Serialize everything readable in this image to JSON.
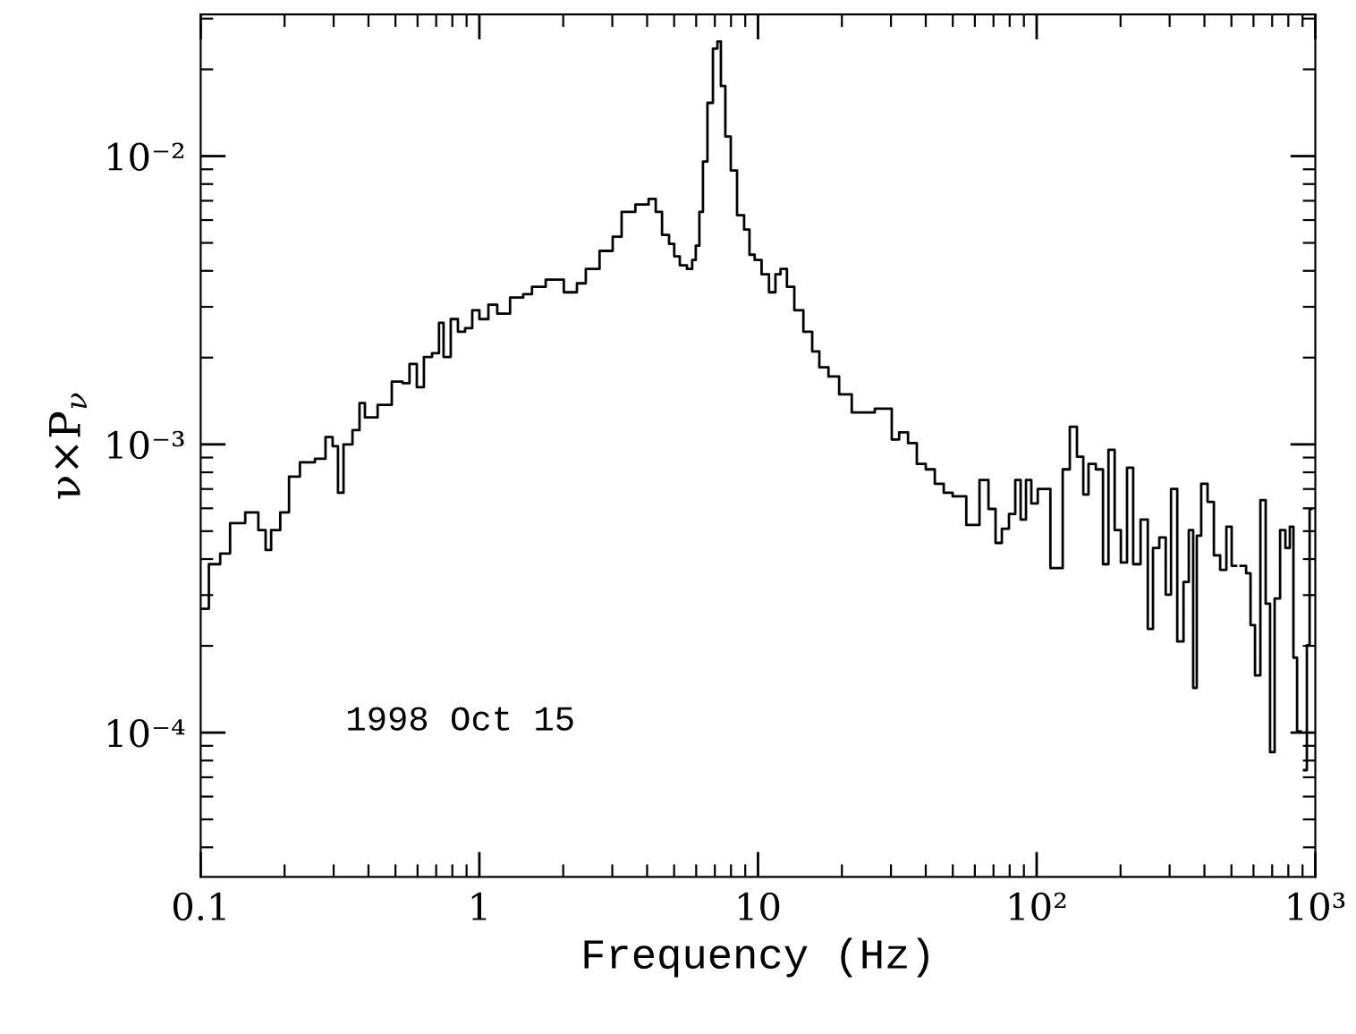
{
  "chart_data": {
    "type": "step",
    "xlabel": "Frequency (Hz)",
    "ylabel": "ν×P$_{ν}$",
    "log": "xy",
    "grid": false,
    "color": "#000000",
    "xlim": [
      0.1,
      1000
    ],
    "ylim": [
      3.16e-05,
      0.031
    ],
    "xticks": [
      0.1,
      1,
      10,
      {
        "value": 100,
        "label": "10²"
      },
      {
        "value": 1000,
        "label": "10³"
      }
    ],
    "yticks": [
      {
        "value": 0.0001,
        "label": "10⁻⁴"
      },
      {
        "value": 0.001,
        "label": "10⁻³"
      },
      {
        "value": 0.01,
        "label": "10⁻²"
      }
    ],
    "annotations": [
      "1998 Oct 15"
    ],
    "x": [
      0.1,
      0.114,
      0.121,
      0.134,
      0.155,
      0.167,
      0.175,
      0.183,
      0.203,
      0.212,
      0.242,
      0.272,
      0.289,
      0.306,
      0.316,
      0.335,
      0.366,
      0.377,
      0.4,
      0.463,
      0.507,
      0.553,
      0.57,
      0.623,
      0.642,
      0.711,
      0.722,
      0.766,
      0.813,
      0.863,
      0.915,
      0.971,
      1.03,
      1.125,
      1.194,
      1.384,
      1.49,
      1.6,
      1.86,
      2.16,
      2.32,
      2.5,
      2.9,
      3.12,
      3.36,
      3.9,
      4.2,
      4.39,
      4.66,
      4.93,
      5.08,
      5.4,
      5.72,
      5.89,
      6.07,
      6.25,
      6.44,
      6.73,
      7.05,
      7.25,
      7.47,
      7.8,
      8.17,
      8.65,
      9.18,
      9.46,
      10.0,
      10.6,
      11.3,
      11.8,
      12.3,
      13.1,
      13.9,
      15.2,
      16.1,
      17.1,
      18.7,
      20.4,
      23.0,
      29.5,
      30.9,
      33.3,
      35.8,
      38.5,
      41.5,
      44.7,
      48.1,
      51.8,
      60.0,
      64.7,
      69.6,
      72.8,
      77.2,
      81.9,
      85.7,
      89.5,
      93.6,
      97.8,
      104,
      120,
      128,
      135,
      144,
      150,
      157,
      169,
      177,
      185,
      196,
      205,
      217,
      227,
      245,
      256,
      267,
      284,
      297,
      310,
      329,
      344,
      359,
      370,
      381,
      398,
      423,
      442,
      469,
      490,
      512,
      527,
      552,
      577,
      594,
      621,
      649,
      678,
      698,
      731,
      764,
      798,
      822,
      847,
      873,
      898,
      925,
      940,
      968
    ],
    "values": [
      0.000269,
      0.000384,
      0.000418,
      0.000533,
      0.000581,
      0.000504,
      0.00043,
      0.000504,
      0.000581,
      0.000773,
      0.000867,
      0.000891,
      0.00106,
      0.000986,
      0.000679,
      0.001,
      0.00112,
      0.00139,
      0.00124,
      0.00137,
      0.00165,
      0.00163,
      0.0019,
      0.00158,
      0.00201,
      0.00207,
      0.00264,
      0.00201,
      0.00272,
      0.00246,
      0.00253,
      0.00292,
      0.00272,
      0.00305,
      0.00284,
      0.00323,
      0.00332,
      0.00352,
      0.00373,
      0.00337,
      0.00362,
      0.00406,
      0.00469,
      0.00525,
      0.00641,
      0.00679,
      0.0071,
      0.00641,
      0.00533,
      0.00496,
      0.00449,
      0.00418,
      0.00406,
      0.00436,
      0.00489,
      0.00641,
      0.00958,
      0.0153,
      0.0236,
      0.025,
      0.0175,
      0.0117,
      0.00892,
      0.00624,
      0.00556,
      0.00455,
      0.00436,
      0.00389,
      0.00337,
      0.00389,
      0.00406,
      0.00352,
      0.00292,
      0.00246,
      0.0021,
      0.00185,
      0.00172,
      0.00149,
      0.00129,
      0.00133,
      0.00104,
      0.0011,
      0.00101,
      0.000855,
      0.000819,
      0.00073,
      0.000679,
      0.00066,
      0.000525,
      0.000752,
      0.000597,
      0.000455,
      0.00051,
      0.000573,
      0.000752,
      0.000548,
      0.000752,
      0.000624,
      0.0007,
      0.000372,
      0.000819,
      0.00115,
      0.000906,
      0.00067,
      0.000855,
      0.000819,
      0.000384,
      0.000957,
      0.000504,
      0.000389,
      0.00083,
      0.000384,
      0.000548,
      0.000229,
      0.000437,
      0.000475,
      0.000301,
      0.0007,
      0.000207,
      0.000333,
      0.000504,
      0.000143,
      0.000482,
      0.00073,
      0.000632,
      0.000412,
      0.000367,
      0.000518,
      0.000379,
      null,
      0.000379,
      0.000357,
      0.000236,
      0.000158,
      0.000641,
      0.00028,
      8.55e-05,
      0.000292,
      0.000504,
      0.000437,
      0.000518,
      0.000182,
      0.000101,
      null,
      7.41e-05,
      0.000201,
      0.000597
    ]
  }
}
